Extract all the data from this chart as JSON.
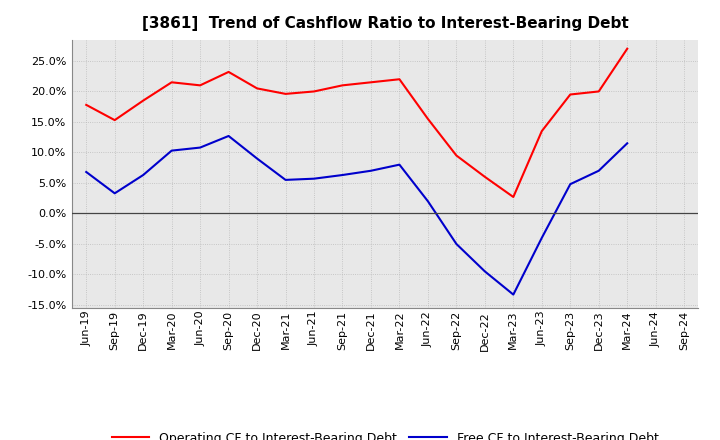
{
  "title": "[3861]  Trend of Cashflow Ratio to Interest-Bearing Debt",
  "x_labels": [
    "Jun-19",
    "Sep-19",
    "Dec-19",
    "Mar-20",
    "Jun-20",
    "Sep-20",
    "Dec-20",
    "Mar-21",
    "Jun-21",
    "Sep-21",
    "Dec-21",
    "Mar-22",
    "Jun-22",
    "Sep-22",
    "Dec-22",
    "Mar-23",
    "Jun-23",
    "Sep-23",
    "Dec-23",
    "Mar-24",
    "Jun-24",
    "Sep-24"
  ],
  "operating_cf": [
    0.178,
    0.153,
    0.185,
    0.215,
    0.21,
    0.232,
    0.205,
    0.196,
    0.2,
    0.21,
    0.215,
    0.22,
    0.155,
    0.095,
    0.06,
    0.027,
    0.135,
    0.195,
    0.2,
    0.27,
    null,
    null
  ],
  "free_cf": [
    0.068,
    0.033,
    0.063,
    0.103,
    0.108,
    0.127,
    0.09,
    0.055,
    0.057,
    0.063,
    0.07,
    0.08,
    0.02,
    -0.05,
    -0.095,
    -0.133,
    -0.04,
    0.048,
    0.07,
    0.115,
    null,
    null
  ],
  "operating_color": "#ff0000",
  "free_color": "#0000cc",
  "ylim": [
    -0.155,
    0.285
  ],
  "yticks": [
    -0.15,
    -0.1,
    -0.05,
    0.0,
    0.05,
    0.1,
    0.15,
    0.2,
    0.25
  ],
  "background_color": "#ffffff",
  "plot_bg_color": "#e8e8e8",
  "grid_color": "#bbbbbb",
  "legend_op_label": "Operating CF to Interest-Bearing Debt",
  "legend_free_label": "Free CF to Interest-Bearing Debt",
  "title_fontsize": 11,
  "tick_fontsize": 8,
  "legend_fontsize": 9
}
